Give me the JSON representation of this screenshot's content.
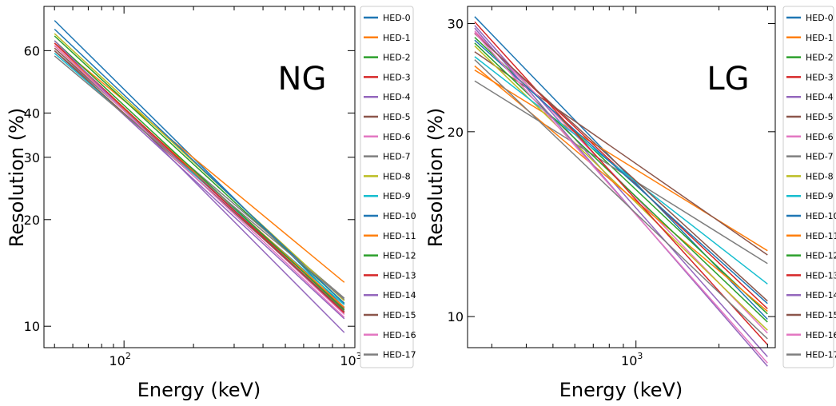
{
  "chart_data": [
    {
      "type": "line",
      "panel_label": "NG",
      "xlabel": "Energy (keV)",
      "ylabel": "Resolution (%)",
      "x_scale": "log",
      "y_scale": "log",
      "xlim": [
        45,
        1000
      ],
      "ylim": [
        8.7,
        80
      ],
      "x_major_ticks": [
        {
          "value": 100,
          "mantissa": "10",
          "exp": "2"
        },
        {
          "value": 1000,
          "mantissa": "10",
          "exp": "3"
        }
      ],
      "y_ticks": [
        {
          "value": 10,
          "label": "10"
        },
        {
          "value": 20,
          "label": "20"
        },
        {
          "value": 30,
          "label": "30"
        },
        {
          "value": 40,
          "label": "40"
        },
        {
          "value": 60,
          "label": "60"
        }
      ],
      "grid": false,
      "legend_position": "outside right",
      "series": [
        {
          "name": "HED-0",
          "x": [
            50,
            900
          ],
          "y": [
            73,
            11.3
          ]
        },
        {
          "name": "HED-1",
          "x": [
            50,
            900
          ],
          "y": [
            63,
            13.3
          ]
        },
        {
          "name": "HED-2",
          "x": [
            50,
            900
          ],
          "y": [
            66,
            11.6
          ]
        },
        {
          "name": "HED-3",
          "x": [
            50,
            900
          ],
          "y": [
            62,
            11.0
          ]
        },
        {
          "name": "HED-4",
          "x": [
            50,
            900
          ],
          "y": [
            60,
            10.5
          ]
        },
        {
          "name": "HED-5",
          "x": [
            50,
            900
          ],
          "y": [
            61,
            11.2
          ]
        },
        {
          "name": "HED-6",
          "x": [
            50,
            900
          ],
          "y": [
            63,
            10.8
          ]
        },
        {
          "name": "HED-7",
          "x": [
            50,
            900
          ],
          "y": [
            60,
            12.0
          ]
        },
        {
          "name": "HED-8",
          "x": [
            50,
            900
          ],
          "y": [
            67,
            11.8
          ]
        },
        {
          "name": "HED-9",
          "x": [
            50,
            900
          ],
          "y": [
            59,
            11.5
          ]
        },
        {
          "name": "HED-10",
          "x": [
            50,
            900
          ],
          "y": [
            69,
            11.6
          ]
        },
        {
          "name": "HED-11",
          "x": [
            50,
            900
          ],
          "y": [
            62,
            11.3
          ]
        },
        {
          "name": "HED-12",
          "x": [
            50,
            900
          ],
          "y": [
            64,
            11.1
          ]
        },
        {
          "name": "HED-13",
          "x": [
            50,
            900
          ],
          "y": [
            63,
            10.9
          ]
        },
        {
          "name": "HED-14",
          "x": [
            50,
            900
          ],
          "y": [
            64,
            9.6
          ]
        },
        {
          "name": "HED-15",
          "x": [
            50,
            900
          ],
          "y": [
            60,
            11.0
          ]
        },
        {
          "name": "HED-16",
          "x": [
            50,
            900
          ],
          "y": [
            62,
            10.6
          ]
        },
        {
          "name": "HED-17",
          "x": [
            50,
            900
          ],
          "y": [
            58,
            11.9
          ]
        }
      ]
    },
    {
      "type": "line",
      "panel_label": "LG",
      "xlabel": "Energy (keV)",
      "ylabel": "Resolution (%)",
      "x_scale": "log",
      "y_scale": "log",
      "xlim": [
        245,
        3200
      ],
      "ylim": [
        8.9,
        32
      ],
      "x_major_ticks": [
        {
          "value": 1000,
          "mantissa": "10",
          "exp": "3"
        }
      ],
      "y_ticks": [
        {
          "value": 10,
          "label": "10"
        },
        {
          "value": 20,
          "label": "20"
        },
        {
          "value": 30,
          "label": "30"
        }
      ],
      "grid": false,
      "legend_position": "outside right",
      "series": [
        {
          "name": "HED-0",
          "x": [
            260,
            3000
          ],
          "y": [
            30.8,
            9.9
          ]
        },
        {
          "name": "HED-1",
          "x": [
            260,
            3000
          ],
          "y": [
            25.2,
            12.8
          ]
        },
        {
          "name": "HED-2",
          "x": [
            260,
            3000
          ],
          "y": [
            28.5,
            10.1
          ]
        },
        {
          "name": "HED-3",
          "x": [
            260,
            3000
          ],
          "y": [
            29.0,
            10.3
          ]
        },
        {
          "name": "HED-4",
          "x": [
            260,
            3000
          ],
          "y": [
            29.8,
            8.6
          ]
        },
        {
          "name": "HED-5",
          "x": [
            260,
            3000
          ],
          "y": [
            27.0,
            12.6
          ]
        },
        {
          "name": "HED-6",
          "x": [
            260,
            3000
          ],
          "y": [
            29.2,
            9.4
          ]
        },
        {
          "name": "HED-7",
          "x": [
            260,
            3000
          ],
          "y": [
            24.2,
            12.2
          ]
        },
        {
          "name": "HED-8",
          "x": [
            260,
            3000
          ],
          "y": [
            27.6,
            9.5
          ]
        },
        {
          "name": "HED-9",
          "x": [
            260,
            3000
          ],
          "y": [
            26.5,
            11.3
          ]
        },
        {
          "name": "HED-10",
          "x": [
            260,
            3000
          ],
          "y": [
            28.2,
            10.5
          ]
        },
        {
          "name": "HED-11",
          "x": [
            260,
            3000
          ],
          "y": [
            25.6,
            10.2
          ]
        },
        {
          "name": "HED-12",
          "x": [
            260,
            3000
          ],
          "y": [
            27.9,
            9.8
          ]
        },
        {
          "name": "HED-13",
          "x": [
            260,
            3000
          ],
          "y": [
            30.2,
            9.0
          ]
        },
        {
          "name": "HED-14",
          "x": [
            260,
            3000
          ],
          "y": [
            29.5,
            8.3
          ]
        },
        {
          "name": "HED-15",
          "x": [
            260,
            3000
          ],
          "y": [
            28.9,
            10.6
          ]
        },
        {
          "name": "HED-16",
          "x": [
            260,
            3000
          ],
          "y": [
            29.0,
            8.4
          ]
        },
        {
          "name": "HED-17",
          "x": [
            260,
            3000
          ],
          "y": [
            26.2,
            9.2
          ]
        }
      ]
    }
  ],
  "colors": [
    "#1f77b4",
    "#ff7f0e",
    "#2ca02c",
    "#d62728",
    "#9467bd",
    "#8c564b",
    "#e377c2",
    "#7f7f7f",
    "#bcbd22",
    "#17becf",
    "#1f77b4",
    "#ff7f0e",
    "#2ca02c",
    "#d62728",
    "#9467bd",
    "#8c564b",
    "#e377c2",
    "#7f7f7f"
  ]
}
